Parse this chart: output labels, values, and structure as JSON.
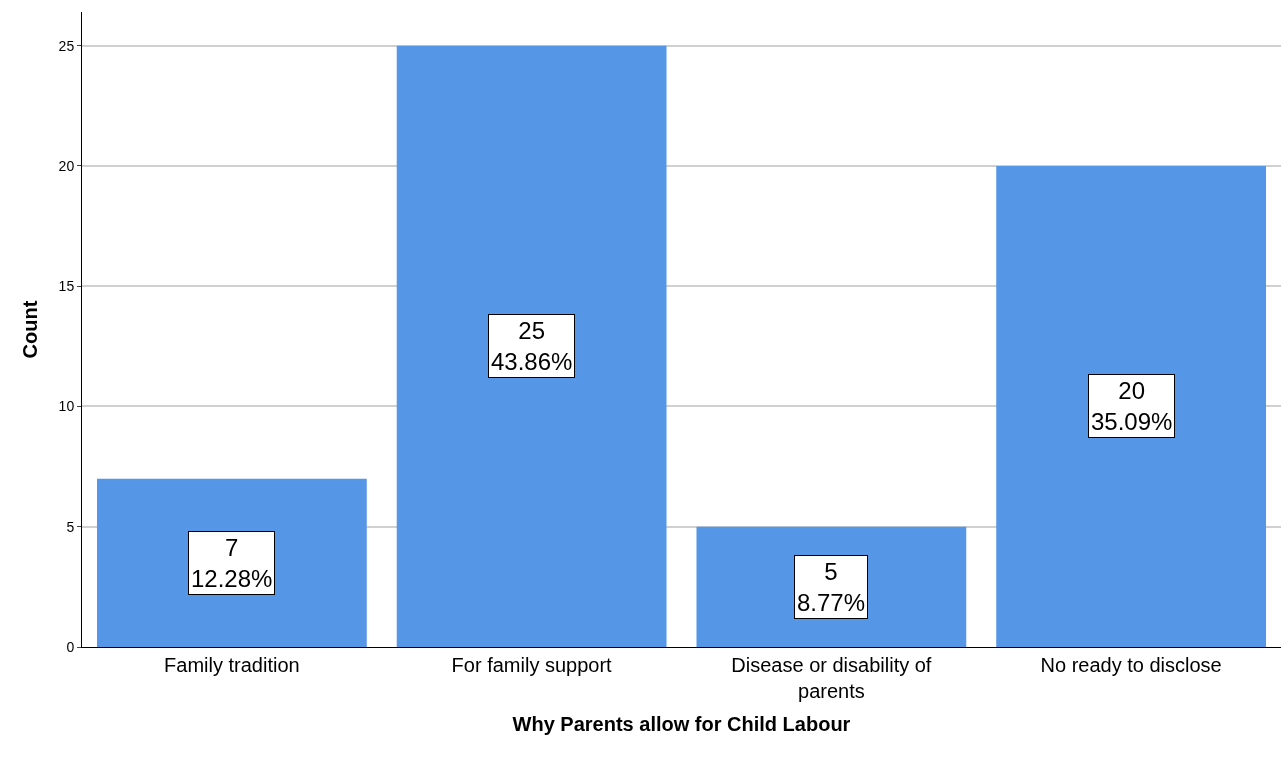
{
  "chart_data": {
    "type": "bar",
    "xlabel": "Why Parents allow for Child Labour",
    "ylabel": "Count",
    "categories": [
      "Family tradition",
      "For family support",
      "Disease or disability of parents",
      "No ready to disclose"
    ],
    "values": [
      7,
      25,
      5,
      20
    ],
    "value_labels": [
      "7\n12.28%",
      "25\n43.86%",
      "5\n8.77%",
      "20\n35.09%"
    ],
    "color": "#5596e6",
    "ylim": [
      0,
      26.4
    ],
    "yticks": [
      0,
      5,
      10,
      15,
      20,
      25
    ],
    "grid": "y"
  }
}
